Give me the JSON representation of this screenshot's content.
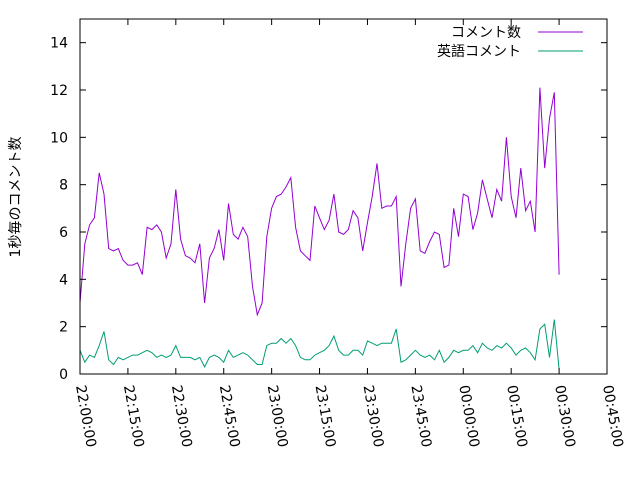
{
  "chart_data": {
    "type": "line",
    "title": "",
    "xlabel": "",
    "ylabel": "1秒毎のコメント数",
    "ylim": [
      0,
      15
    ],
    "xlim": [
      "22:00:00",
      "00:45:00"
    ],
    "yticks": [
      "0",
      "2",
      "4",
      "6",
      "8",
      "10",
      "12",
      "14"
    ],
    "xticks": [
      "22:00:00",
      "22:15:00",
      "22:30:00",
      "22:45:00",
      "23:00:00",
      "23:15:00",
      "23:30:00",
      "23:45:00",
      "00:00:00",
      "00:15:00",
      "00:30:00",
      "00:45:00"
    ],
    "grid": false,
    "legend_position": "top-right",
    "x_interval_seconds": 90,
    "series": [
      {
        "name": "コメント数",
        "color": "#9400d3",
        "values": [
          3.0,
          5.5,
          6.3,
          6.6,
          8.5,
          7.6,
          5.3,
          5.2,
          5.3,
          4.8,
          4.6,
          4.6,
          4.7,
          4.2,
          6.2,
          6.1,
          6.3,
          6.0,
          4.9,
          5.5,
          7.8,
          5.7,
          5.0,
          4.9,
          4.7,
          5.5,
          3.0,
          4.9,
          5.3,
          6.1,
          4.8,
          7.2,
          5.9,
          5.7,
          6.2,
          5.8,
          3.7,
          2.5,
          3.0,
          5.8,
          7.0,
          7.5,
          7.6,
          7.9,
          8.3,
          6.2,
          5.2,
          5.0,
          4.8,
          7.1,
          6.6,
          6.1,
          6.5,
          7.6,
          6.0,
          5.9,
          6.1,
          6.9,
          6.6,
          5.2,
          6.4,
          7.5,
          8.9,
          7.0,
          7.1,
          7.1,
          7.5,
          3.7,
          5.5,
          7.0,
          7.4,
          5.2,
          5.1,
          5.6,
          6.0,
          5.9,
          4.5,
          4.6,
          7.0,
          5.8,
          7.6,
          7.5,
          6.1,
          6.8,
          8.2,
          7.4,
          6.6,
          7.8,
          7.3,
          10.0,
          7.5,
          6.6,
          8.7,
          6.9,
          7.3,
          6.0,
          12.1,
          8.7,
          10.8,
          11.9,
          4.2
        ]
      },
      {
        "name": "英語コメント",
        "color": "#009e73",
        "values": [
          1.0,
          0.5,
          0.8,
          0.7,
          1.2,
          1.8,
          0.6,
          0.4,
          0.7,
          0.6,
          0.7,
          0.8,
          0.8,
          0.9,
          1.0,
          0.9,
          0.7,
          0.8,
          0.7,
          0.8,
          1.2,
          0.7,
          0.7,
          0.7,
          0.6,
          0.7,
          0.3,
          0.7,
          0.8,
          0.7,
          0.5,
          1.0,
          0.7,
          0.8,
          0.9,
          0.8,
          0.6,
          0.4,
          0.4,
          1.2,
          1.3,
          1.3,
          1.5,
          1.3,
          1.5,
          1.2,
          0.7,
          0.6,
          0.6,
          0.8,
          0.9,
          1.0,
          1.2,
          1.6,
          1.0,
          0.8,
          0.8,
          1.0,
          1.0,
          0.8,
          1.4,
          1.3,
          1.2,
          1.3,
          1.3,
          1.3,
          1.9,
          0.5,
          0.6,
          0.8,
          1.0,
          0.8,
          0.7,
          0.8,
          0.6,
          1.0,
          0.5,
          0.7,
          1.0,
          0.9,
          1.0,
          1.0,
          1.2,
          0.9,
          1.3,
          1.1,
          1.0,
          1.2,
          1.1,
          1.3,
          1.1,
          0.8,
          1.0,
          1.1,
          0.9,
          0.6,
          1.9,
          2.1,
          0.7,
          2.3,
          0.2
        ]
      }
    ]
  }
}
